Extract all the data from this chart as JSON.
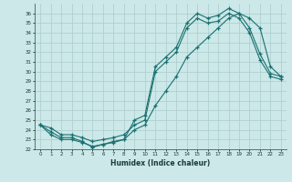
{
  "xlabel": "Humidex (Indice chaleur)",
  "background_color": "#cce8e8",
  "grid_color": "#aacccc",
  "line_color": "#1a7070",
  "xlim": [
    -0.5,
    23.5
  ],
  "ylim": [
    22,
    37
  ],
  "xticks": [
    0,
    1,
    2,
    3,
    4,
    5,
    6,
    7,
    8,
    9,
    10,
    11,
    12,
    13,
    14,
    15,
    16,
    17,
    18,
    19,
    20,
    21,
    22,
    23
  ],
  "yticks": [
    22,
    23,
    24,
    25,
    26,
    27,
    28,
    29,
    30,
    31,
    32,
    33,
    34,
    35,
    36
  ],
  "line1_x": [
    0,
    1,
    2,
    3,
    4,
    5,
    6,
    7,
    8,
    9,
    10,
    11,
    12,
    13,
    14,
    15,
    16,
    17,
    18,
    19,
    20,
    21,
    22,
    23
  ],
  "line1_y": [
    24.5,
    23.8,
    23.2,
    23.2,
    22.8,
    22.2,
    22.5,
    22.8,
    23.0,
    25.0,
    25.5,
    30.5,
    31.5,
    32.5,
    35.0,
    36.0,
    35.5,
    35.8,
    36.5,
    36.0,
    34.5,
    31.8,
    29.8,
    29.5
  ],
  "line2_x": [
    0,
    1,
    2,
    3,
    4,
    5,
    6,
    7,
    8,
    9,
    10,
    11,
    12,
    13,
    14,
    15,
    16,
    17,
    18,
    19,
    20,
    21,
    22,
    23
  ],
  "line2_y": [
    24.5,
    24.2,
    23.5,
    23.5,
    23.2,
    22.8,
    23.0,
    23.2,
    23.5,
    24.5,
    25.0,
    30.0,
    31.0,
    32.0,
    34.5,
    35.5,
    35.0,
    35.2,
    36.0,
    35.5,
    34.0,
    31.2,
    29.5,
    29.2
  ],
  "line3_x": [
    0,
    1,
    2,
    3,
    4,
    5,
    6,
    7,
    8,
    9,
    10,
    11,
    12,
    13,
    14,
    15,
    16,
    17,
    18,
    19,
    20,
    21,
    22,
    23
  ],
  "line3_y": [
    24.5,
    23.5,
    23.0,
    23.0,
    22.7,
    22.3,
    22.5,
    22.7,
    23.0,
    24.0,
    24.5,
    26.5,
    28.0,
    29.5,
    31.5,
    32.5,
    33.5,
    34.5,
    35.5,
    36.0,
    35.5,
    34.5,
    30.5,
    29.5
  ]
}
